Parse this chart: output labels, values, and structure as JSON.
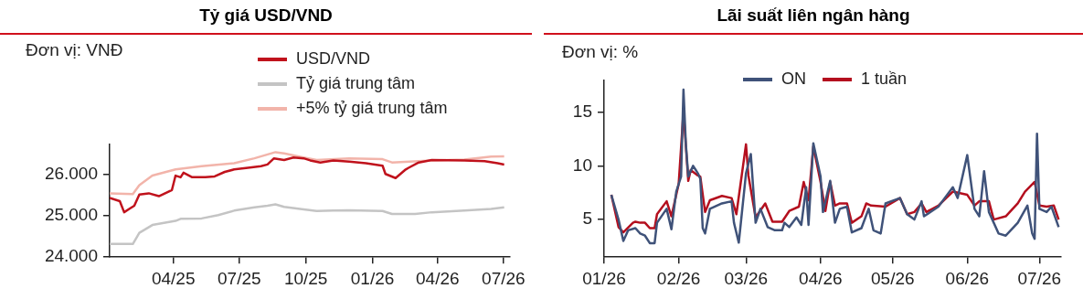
{
  "chart_data": [
    {
      "type": "line",
      "title": "Tỷ giá USD/VND",
      "ylabel": "Đơn vị: VNĐ",
      "legend": "top right",
      "grid": false,
      "marker": "none",
      "xlim": [
        "2025-01-03",
        "2026-07-10"
      ],
      "xticks": [
        {
          "value": "2025-04-01",
          "label": "04/25"
        },
        {
          "value": "2025-07-01",
          "label": "07/25"
        },
        {
          "value": "2025-10-01",
          "label": "10/25"
        },
        {
          "value": "2026-01-01",
          "label": "01/26"
        },
        {
          "value": "2026-04-01",
          "label": "04/26"
        },
        {
          "value": "2026-07-01",
          "label": "07/26"
        }
      ],
      "ylim": [
        24000,
        26750
      ],
      "yticks": [
        {
          "value": 24000,
          "label": "24.000"
        },
        {
          "value": 25000,
          "label": "25.000"
        },
        {
          "value": 26000,
          "label": "26.000"
        }
      ],
      "series": [
        {
          "name": "USD/VND",
          "color": "#c0121c",
          "x": [
            "2025-01-03",
            "2025-01-17",
            "2025-01-23",
            "2025-01-30",
            "2025-02-06",
            "2025-02-13",
            "2025-02-26",
            "2025-03-12",
            "2025-03-30",
            "2025-04-04",
            "2025-04-11",
            "2025-04-15",
            "2025-04-27",
            "2025-05-15",
            "2025-05-28",
            "2025-06-11",
            "2025-06-24",
            "2025-07-13",
            "2025-07-31",
            "2025-08-09",
            "2025-08-18",
            "2025-09-01",
            "2025-09-14",
            "2025-09-28",
            "2025-10-07",
            "2025-10-21",
            "2025-11-08",
            "2025-11-30",
            "2025-12-23",
            "2026-01-15",
            "2026-01-19",
            "2026-02-02",
            "2026-02-16",
            "2026-02-20",
            "2026-03-06",
            "2026-03-24",
            "2026-05-08",
            "2026-06-05",
            "2026-06-23",
            "2026-07-02"
          ],
          "values": [
            25440,
            25360,
            25090,
            25170,
            25250,
            25520,
            25550,
            25480,
            25630,
            25980,
            25940,
            26050,
            25940,
            25940,
            25960,
            26070,
            26130,
            26170,
            26210,
            26250,
            26400,
            26360,
            26420,
            26400,
            26350,
            26300,
            26350,
            26320,
            26280,
            26220,
            26020,
            25920,
            26130,
            26170,
            26300,
            26360,
            26350,
            26330,
            26280,
            26250
          ]
        },
        {
          "name": "Tỷ giá trung tâm",
          "color": "#c4c4c4",
          "x": [
            "2025-01-03",
            "2025-02-04",
            "2025-02-13",
            "2025-03-03",
            "2025-04-04",
            "2025-04-11",
            "2025-05-10",
            "2025-06-02",
            "2025-06-24",
            "2025-07-22",
            "2025-08-09",
            "2025-08-20",
            "2025-09-01",
            "2025-09-23",
            "2025-10-16",
            "2025-11-08",
            "2025-11-30",
            "2026-01-15",
            "2026-01-28",
            "2026-03-01",
            "2026-03-24",
            "2026-05-08",
            "2026-06-14",
            "2026-07-02"
          ],
          "values": [
            24320,
            24320,
            24590,
            24780,
            24880,
            24930,
            24940,
            25020,
            25130,
            25210,
            25250,
            25280,
            25220,
            25170,
            25120,
            25130,
            25140,
            25120,
            25050,
            25050,
            25090,
            25130,
            25170,
            25210
          ]
        },
        {
          "name": "+5% tỷ giá trung tâm",
          "color": "#f2b4aa",
          "x": [
            "2025-01-03",
            "2025-02-04",
            "2025-02-13",
            "2025-03-03",
            "2025-04-04",
            "2025-05-10",
            "2025-06-24",
            "2025-07-22",
            "2025-08-20",
            "2025-09-01",
            "2025-09-23",
            "2025-10-16",
            "2025-11-30",
            "2026-01-15",
            "2026-01-28",
            "2026-03-24",
            "2026-05-08",
            "2026-06-14",
            "2026-07-02"
          ],
          "values": [
            25550,
            25530,
            25750,
            25980,
            26130,
            26210,
            26280,
            26400,
            26550,
            26520,
            26440,
            26360,
            26400,
            26380,
            26300,
            26350,
            26370,
            26440,
            26450
          ]
        }
      ]
    },
    {
      "type": "line",
      "title": "Lãi suất liên ngân hàng",
      "ylabel": "Đơn vị: %",
      "legend": "top",
      "grid": false,
      "marker": "none",
      "xlim": [
        "2026-01-01",
        "2026-07-10"
      ],
      "xticks": [
        {
          "value": "2026-01-01",
          "label": "01/26"
        },
        {
          "value": "2026-02-01",
          "label": "02/26"
        },
        {
          "value": "2026-03-01",
          "label": "03/26"
        },
        {
          "value": "2026-04-01",
          "label": "04/26"
        },
        {
          "value": "2026-05-01",
          "label": "05/26"
        },
        {
          "value": "2026-06-01",
          "label": "06/26"
        },
        {
          "value": "2026-07-01",
          "label": "07/26"
        }
      ],
      "ylim": [
        1.5,
        18
      ],
      "yticks": [
        5,
        10,
        15
      ],
      "series": [
        {
          "name": "ON",
          "color": "#3f5279",
          "x": [
            "2026-01-04",
            "2026-01-07",
            "2026-01-09",
            "2026-01-11",
            "2026-01-14",
            "2026-01-16",
            "2026-01-18",
            "2026-01-20",
            "2026-01-22",
            "2026-01-23",
            "2026-01-27",
            "2026-01-29",
            "2026-01-31",
            "2026-02-02",
            "2026-02-03",
            "2026-02-04",
            "2026-02-05",
            "2026-02-07",
            "2026-02-09",
            "2026-02-10",
            "2026-02-11",
            "2026-02-12",
            "2026-02-14",
            "2026-02-19",
            "2026-02-23",
            "2026-02-24",
            "2026-02-26",
            "2026-03-01",
            "2026-03-03",
            "2026-03-05",
            "2026-03-07",
            "2026-03-10",
            "2026-03-13",
            "2026-03-16",
            "2026-03-17",
            "2026-03-19",
            "2026-03-22",
            "2026-03-24",
            "2026-03-26",
            "2026-03-27",
            "2026-03-29",
            "2026-04-01",
            "2026-04-02",
            "2026-04-05",
            "2026-04-07",
            "2026-04-09",
            "2026-04-12",
            "2026-04-14",
            "2026-04-18",
            "2026-04-21",
            "2026-04-23",
            "2026-04-26",
            "2026-04-28",
            "2026-05-04",
            "2026-05-07",
            "2026-05-10",
            "2026-05-13",
            "2026-05-14",
            "2026-05-20",
            "2026-05-26",
            "2026-05-28",
            "2026-06-01",
            "2026-06-04",
            "2026-06-06",
            "2026-06-08",
            "2026-06-10",
            "2026-06-14",
            "2026-06-17",
            "2026-06-22",
            "2026-06-26",
            "2026-06-28",
            "2026-06-29",
            "2026-06-30",
            "2026-07-01",
            "2026-07-04",
            "2026-07-06",
            "2026-07-09"
          ],
          "values": [
            7.3,
            5.0,
            3.0,
            4.0,
            4.2,
            3.7,
            3.5,
            2.8,
            2.8,
            4.7,
            6.0,
            4.1,
            7.6,
            9.0,
            17.1,
            12.0,
            9.0,
            10.0,
            9.3,
            8.8,
            4.2,
            3.7,
            6.0,
            6.5,
            6.7,
            4.7,
            2.85,
            9.3,
            11.1,
            4.7,
            6.0,
            4.3,
            4.0,
            4.0,
            4.7,
            4.3,
            5.2,
            4.5,
            8.0,
            4.5,
            12.1,
            9.0,
            5.7,
            8.6,
            4.7,
            6.0,
            6.2,
            3.8,
            4.2,
            6.0,
            4.0,
            3.7,
            6.5,
            7.0,
            5.5,
            5.0,
            6.7,
            5.3,
            6.2,
            8.0,
            7.0,
            11.0,
            6.0,
            5.3,
            9.5,
            5.7,
            3.7,
            3.5,
            4.7,
            6.3,
            3.7,
            3.2,
            13.0,
            6.0,
            5.7,
            6.2,
            4.3
          ]
        },
        {
          "name": "1 tuần",
          "color": "#b40f1e",
          "x": [
            "2026-01-04",
            "2026-01-07",
            "2026-01-09",
            "2026-01-13",
            "2026-01-14",
            "2026-01-16",
            "2026-01-18",
            "2026-01-20",
            "2026-01-22",
            "2026-01-23",
            "2026-01-27",
            "2026-01-29",
            "2026-02-01",
            "2026-02-03",
            "2026-02-05",
            "2026-02-06",
            "2026-02-09",
            "2026-02-10",
            "2026-02-12",
            "2026-02-14",
            "2026-02-19",
            "2026-02-23",
            "2026-02-25",
            "2026-03-01",
            "2026-03-02",
            "2026-03-05",
            "2026-03-09",
            "2026-03-12",
            "2026-03-16",
            "2026-03-19",
            "2026-03-23",
            "2026-03-25",
            "2026-03-27",
            "2026-03-29",
            "2026-04-01",
            "2026-04-03",
            "2026-04-05",
            "2026-04-07",
            "2026-04-09",
            "2026-04-12",
            "2026-04-14",
            "2026-04-18",
            "2026-04-20",
            "2026-04-22",
            "2026-04-28",
            "2026-05-04",
            "2026-05-07",
            "2026-05-10",
            "2026-05-13",
            "2026-05-15",
            "2026-05-20",
            "2026-05-26",
            "2026-06-01",
            "2026-06-04",
            "2026-06-06",
            "2026-06-10",
            "2026-06-12",
            "2026-06-17",
            "2026-06-22",
            "2026-06-25",
            "2026-06-29",
            "2026-07-01",
            "2026-07-04",
            "2026-07-07",
            "2026-07-09"
          ],
          "values": [
            7.3,
            4.3,
            3.8,
            4.7,
            4.8,
            4.7,
            4.7,
            4.2,
            4.2,
            5.5,
            6.7,
            5.3,
            8.3,
            15.1,
            8.6,
            9.6,
            9.1,
            9.0,
            5.7,
            6.8,
            7.2,
            7.0,
            5.5,
            12.0,
            9.1,
            5.2,
            6.5,
            4.8,
            4.8,
            5.8,
            6.2,
            8.5,
            6.8,
            11.8,
            8.5,
            5.8,
            8.5,
            6.3,
            6.5,
            6.5,
            4.7,
            5.3,
            6.5,
            6.3,
            6.2,
            7.0,
            5.5,
            5.7,
            6.5,
            5.7,
            6.3,
            7.6,
            7.3,
            6.3,
            6.7,
            6.7,
            5.0,
            5.3,
            6.5,
            7.6,
            8.5,
            6.3,
            6.2,
            6.3,
            5.0
          ]
        }
      ]
    }
  ]
}
